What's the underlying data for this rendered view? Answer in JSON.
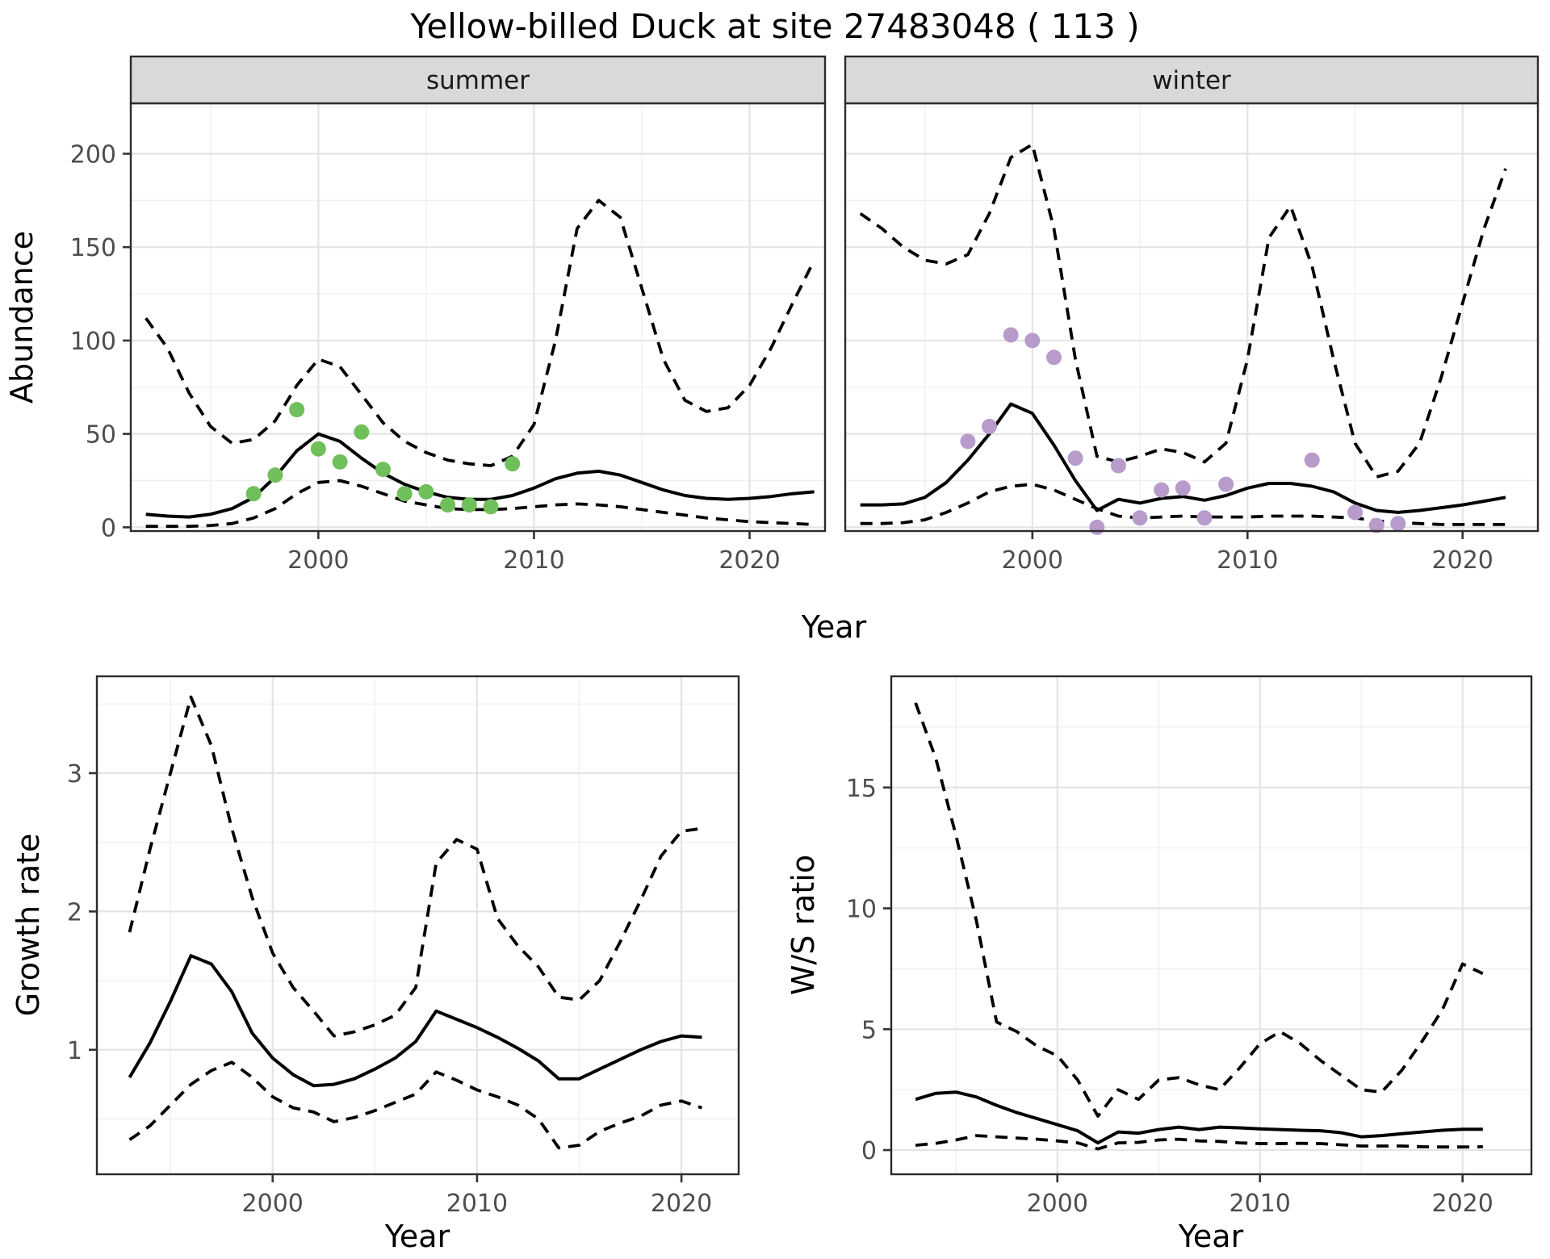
{
  "title": "Yellow-billed Duck at site 27483048 ( 113 )",
  "colors": {
    "summer_points": "#6FBF5A",
    "winter_points": "#B79BCB",
    "line": "#000000",
    "grid_major": "#E4E4E4",
    "grid_minor": "#F0F0F0",
    "strip_bg": "#D9D9D9",
    "panel_border": "#2B2B2B",
    "axis_text": "#4D4D4D"
  },
  "chart_data": [
    {
      "id": "abundance-summer",
      "type": "line",
      "facet_label": "summer",
      "xlabel": "Year",
      "ylabel": "Abundance",
      "xlim": [
        1991.3,
        2023.5
      ],
      "ylim": [
        -2,
        227
      ],
      "x_ticks": [
        2000,
        2010,
        2020
      ],
      "x_minor": [
        1995,
        2005,
        2015
      ],
      "y_ticks": [
        0,
        50,
        100,
        150,
        200
      ],
      "y_minor": [
        25,
        75,
        125,
        175,
        225
      ],
      "legend": "none",
      "series": [
        {
          "name": "fitted",
          "style": "solid",
          "x": [
            1992,
            1993,
            1994,
            1995,
            1996,
            1997,
            1998,
            1999,
            2000,
            2001,
            2002,
            2003,
            2004,
            2005,
            2006,
            2007,
            2008,
            2009,
            2010,
            2011,
            2012,
            2013,
            2014,
            2015,
            2016,
            2017,
            2018,
            2019,
            2020,
            2021,
            2022,
            2023
          ],
          "y": [
            7,
            6,
            5.5,
            7,
            10,
            16,
            27,
            41,
            50,
            46,
            37,
            29,
            23,
            19,
            16,
            15,
            15,
            17,
            21,
            26,
            29,
            30,
            28,
            24,
            20,
            17,
            15.5,
            15,
            15.5,
            16.5,
            18,
            19
          ]
        },
        {
          "name": "upper-ci",
          "style": "dashed",
          "x": [
            1992,
            1993,
            1994,
            1995,
            1996,
            1997,
            1998,
            1999,
            2000,
            2001,
            2002,
            2003,
            2004,
            2005,
            2006,
            2007,
            2008,
            2009,
            2010,
            2011,
            2012,
            2013,
            2014,
            2015,
            2016,
            2017,
            2018,
            2019,
            2020,
            2021,
            2022,
            2023
          ],
          "y": [
            112,
            96,
            72,
            54,
            45,
            47,
            57,
            76,
            90,
            86,
            71,
            56,
            46,
            40,
            36,
            34,
            33,
            38,
            55,
            100,
            160,
            175,
            166,
            128,
            90,
            68,
            62,
            64,
            76,
            96,
            120,
            143
          ]
        },
        {
          "name": "lower-ci",
          "style": "dashed",
          "x": [
            1992,
            1993,
            1994,
            1995,
            1996,
            1997,
            1998,
            1999,
            2000,
            2001,
            2002,
            2003,
            2004,
            2005,
            2006,
            2007,
            2008,
            2009,
            2010,
            2011,
            2012,
            2013,
            2014,
            2015,
            2016,
            2017,
            2018,
            2019,
            2020,
            2021,
            2022,
            2023
          ],
          "y": [
            0.5,
            0.5,
            0.5,
            1,
            2,
            5,
            10,
            18,
            24,
            25,
            22,
            18,
            14,
            12,
            10,
            9.5,
            9.5,
            10,
            11,
            12,
            12.5,
            12,
            11,
            9.5,
            8,
            6.5,
            5,
            4,
            3,
            2.5,
            2,
            1.5
          ]
        }
      ],
      "points": {
        "name": "observed",
        "color_key": "summer_points",
        "x": [
          1997,
          1998,
          1999,
          2000,
          2001,
          2002,
          2003,
          2004,
          2005,
          2006,
          2007,
          2008,
          2009
        ],
        "y": [
          18,
          28,
          63,
          42,
          35,
          51,
          31,
          18,
          19,
          12,
          12,
          11,
          34
        ]
      }
    },
    {
      "id": "abundance-winter",
      "type": "line",
      "facet_label": "winter",
      "xlabel": "Year",
      "ylabel": "",
      "xlim": [
        1991.3,
        2023.5
      ],
      "ylim": [
        -2,
        227
      ],
      "x_ticks": [
        2000,
        2010,
        2020
      ],
      "x_minor": [
        1995,
        2005,
        2015
      ],
      "y_ticks": [
        0,
        50,
        100,
        150,
        200
      ],
      "y_minor": [
        25,
        75,
        125,
        175,
        225
      ],
      "legend": "none",
      "series": [
        {
          "name": "fitted",
          "style": "solid",
          "x": [
            1992,
            1993,
            1994,
            1995,
            1996,
            1997,
            1998,
            1999,
            2000,
            2001,
            2002,
            2003,
            2004,
            2005,
            2006,
            2007,
            2008,
            2009,
            2010,
            2011,
            2012,
            2013,
            2014,
            2015,
            2016,
            2017,
            2018,
            2019,
            2020,
            2021,
            2022
          ],
          "y": [
            12,
            12,
            12.5,
            16,
            24,
            36,
            50,
            66,
            61,
            44,
            25,
            9,
            15,
            13,
            15.5,
            16.5,
            14.5,
            17,
            21,
            23.5,
            23.5,
            22,
            19,
            13,
            9,
            8,
            9,
            10.5,
            12,
            14,
            16
          ]
        },
        {
          "name": "upper-ci",
          "style": "dashed",
          "x": [
            1992,
            1993,
            1994,
            1995,
            1996,
            1997,
            1998,
            1999,
            2000,
            2001,
            2002,
            2003,
            2004,
            2005,
            2006,
            2007,
            2008,
            2009,
            2010,
            2011,
            2012,
            2013,
            2014,
            2015,
            2016,
            2017,
            2018,
            2019,
            2020,
            2021,
            2022
          ],
          "y": [
            168,
            160,
            150,
            143,
            141,
            146,
            168,
            198,
            205,
            160,
            90,
            38,
            35,
            38,
            42,
            40,
            35,
            45,
            90,
            155,
            172,
            140,
            90,
            45,
            27,
            30,
            45,
            80,
            120,
            160,
            192
          ]
        },
        {
          "name": "lower-ci",
          "style": "dashed",
          "x": [
            1992,
            1993,
            1994,
            1995,
            1996,
            1997,
            1998,
            1999,
            2000,
            2001,
            2002,
            2003,
            2004,
            2005,
            2006,
            2007,
            2008,
            2009,
            2010,
            2011,
            2012,
            2013,
            2014,
            2015,
            2016,
            2017,
            2018,
            2019,
            2020,
            2021,
            2022
          ],
          "y": [
            2,
            2,
            2.5,
            4,
            8,
            13,
            19,
            22,
            23,
            20,
            15,
            10,
            6,
            5,
            5.5,
            6,
            5.5,
            5.5,
            5.5,
            6,
            6,
            6,
            5.5,
            5,
            3.5,
            2.5,
            2,
            1.5,
            1.5,
            1.5,
            1.5
          ]
        }
      ],
      "points": {
        "name": "observed",
        "color_key": "winter_points",
        "x": [
          1997,
          1998,
          1999,
          2000,
          2001,
          2002,
          2003,
          2004,
          2005,
          2006,
          2007,
          2008,
          2009,
          2013,
          2015,
          2016,
          2017
        ],
        "y": [
          46,
          54,
          103,
          100,
          91,
          37,
          0,
          33,
          5,
          20,
          21,
          5,
          23,
          36,
          8,
          1,
          2
        ]
      }
    },
    {
      "id": "growth-rate",
      "type": "line",
      "facet_label": "",
      "xlabel": "Year",
      "ylabel": "Growth rate",
      "xlim": [
        1991.4,
        2022.8
      ],
      "ylim": [
        0.1,
        3.7
      ],
      "x_ticks": [
        2000,
        2010,
        2020
      ],
      "x_minor": [
        1995,
        2005,
        2015
      ],
      "y_ticks": [
        1,
        2,
        3
      ],
      "y_minor": [
        0.5,
        1.5,
        2.5,
        3.5
      ],
      "legend": "none",
      "series": [
        {
          "name": "fitted",
          "style": "solid",
          "x": [
            1993,
            1994,
            1995,
            1996,
            1997,
            1998,
            1999,
            2000,
            2001,
            2002,
            2003,
            2004,
            2005,
            2006,
            2007,
            2008,
            2009,
            2010,
            2011,
            2012,
            2013,
            2014,
            2015,
            2016,
            2017,
            2018,
            2019,
            2020,
            2021
          ],
          "y": [
            0.8,
            1.05,
            1.35,
            1.68,
            1.62,
            1.42,
            1.12,
            0.94,
            0.82,
            0.74,
            0.75,
            0.79,
            0.86,
            0.94,
            1.06,
            1.28,
            1.22,
            1.16,
            1.09,
            1.01,
            0.92,
            0.79,
            0.79,
            0.86,
            0.93,
            1.0,
            1.06,
            1.1,
            1.09
          ]
        },
        {
          "name": "upper-ci",
          "style": "dashed",
          "x": [
            1993,
            1994,
            1995,
            1996,
            1997,
            1998,
            1999,
            2000,
            2001,
            2002,
            2003,
            2004,
            2005,
            2006,
            2007,
            2008,
            2009,
            2010,
            2011,
            2012,
            2013,
            2014,
            2015,
            2016,
            2017,
            2018,
            2019,
            2020,
            2021
          ],
          "y": [
            1.85,
            2.45,
            3.0,
            3.55,
            3.2,
            2.6,
            2.1,
            1.7,
            1.45,
            1.28,
            1.1,
            1.13,
            1.18,
            1.25,
            1.45,
            2.35,
            2.52,
            2.45,
            1.95,
            1.75,
            1.6,
            1.38,
            1.36,
            1.5,
            1.78,
            2.08,
            2.4,
            2.58,
            2.6
          ]
        },
        {
          "name": "lower-ci",
          "style": "dashed",
          "x": [
            1993,
            1994,
            1995,
            1996,
            1997,
            1998,
            1999,
            2000,
            2001,
            2002,
            2003,
            2004,
            2005,
            2006,
            2007,
            2008,
            2009,
            2010,
            2011,
            2012,
            2013,
            2014,
            2015,
            2016,
            2017,
            2018,
            2019,
            2020,
            2021
          ],
          "y": [
            0.35,
            0.45,
            0.6,
            0.75,
            0.85,
            0.91,
            0.8,
            0.66,
            0.58,
            0.55,
            0.48,
            0.51,
            0.56,
            0.62,
            0.68,
            0.84,
            0.78,
            0.71,
            0.66,
            0.6,
            0.5,
            0.29,
            0.31,
            0.41,
            0.47,
            0.52,
            0.6,
            0.63,
            0.58
          ]
        }
      ],
      "points": null
    },
    {
      "id": "ws-ratio",
      "type": "line",
      "facet_label": "",
      "xlabel": "Year",
      "ylabel": "W/S ratio",
      "xlim": [
        1991.8,
        2023.4
      ],
      "ylim": [
        -1.0,
        19.6
      ],
      "x_ticks": [
        2000,
        2010,
        2020
      ],
      "x_minor": [
        1995,
        2005,
        2015
      ],
      "y_ticks": [
        0,
        5,
        10,
        15
      ],
      "y_minor": [
        2.5,
        7.5,
        12.5,
        17.5
      ],
      "legend": "none",
      "series": [
        {
          "name": "fitted",
          "style": "solid",
          "x": [
            1993,
            1994,
            1995,
            1996,
            1997,
            1998,
            1999,
            2000,
            2001,
            2002,
            2003,
            2004,
            2005,
            2006,
            2007,
            2008,
            2009,
            2010,
            2011,
            2012,
            2013,
            2014,
            2015,
            2016,
            2017,
            2018,
            2019,
            2020,
            2021
          ],
          "y": [
            2.1,
            2.35,
            2.4,
            2.2,
            1.85,
            1.55,
            1.3,
            1.05,
            0.8,
            0.3,
            0.75,
            0.7,
            0.85,
            0.95,
            0.85,
            0.95,
            0.92,
            0.88,
            0.85,
            0.82,
            0.8,
            0.72,
            0.55,
            0.6,
            0.68,
            0.75,
            0.82,
            0.86,
            0.86
          ]
        },
        {
          "name": "upper-ci",
          "style": "dashed",
          "x": [
            1993,
            1994,
            1995,
            1996,
            1997,
            1998,
            1999,
            2000,
            2001,
            2002,
            2003,
            2004,
            2005,
            2006,
            2007,
            2008,
            2009,
            2010,
            2011,
            2012,
            2013,
            2014,
            2015,
            2016,
            2017,
            2018,
            2019,
            2020,
            2021
          ],
          "y": [
            18.5,
            16.2,
            13.0,
            9.5,
            5.3,
            4.9,
            4.3,
            3.9,
            2.9,
            1.4,
            2.5,
            2.1,
            2.9,
            3.0,
            2.7,
            2.5,
            3.4,
            4.4,
            4.9,
            4.4,
            3.7,
            3.1,
            2.5,
            2.4,
            3.3,
            4.5,
            5.8,
            7.7,
            7.3
          ]
        },
        {
          "name": "lower-ci",
          "style": "dashed",
          "x": [
            1993,
            1994,
            1995,
            1996,
            1997,
            1998,
            1999,
            2000,
            2001,
            2002,
            2003,
            2004,
            2005,
            2006,
            2007,
            2008,
            2009,
            2010,
            2011,
            2012,
            2013,
            2014,
            2015,
            2016,
            2017,
            2018,
            2019,
            2020,
            2021
          ],
          "y": [
            0.2,
            0.28,
            0.42,
            0.6,
            0.55,
            0.5,
            0.45,
            0.38,
            0.3,
            0.05,
            0.3,
            0.32,
            0.42,
            0.45,
            0.38,
            0.36,
            0.3,
            0.27,
            0.27,
            0.28,
            0.27,
            0.22,
            0.17,
            0.17,
            0.17,
            0.14,
            0.13,
            0.13,
            0.14
          ]
        }
      ],
      "points": null
    }
  ]
}
